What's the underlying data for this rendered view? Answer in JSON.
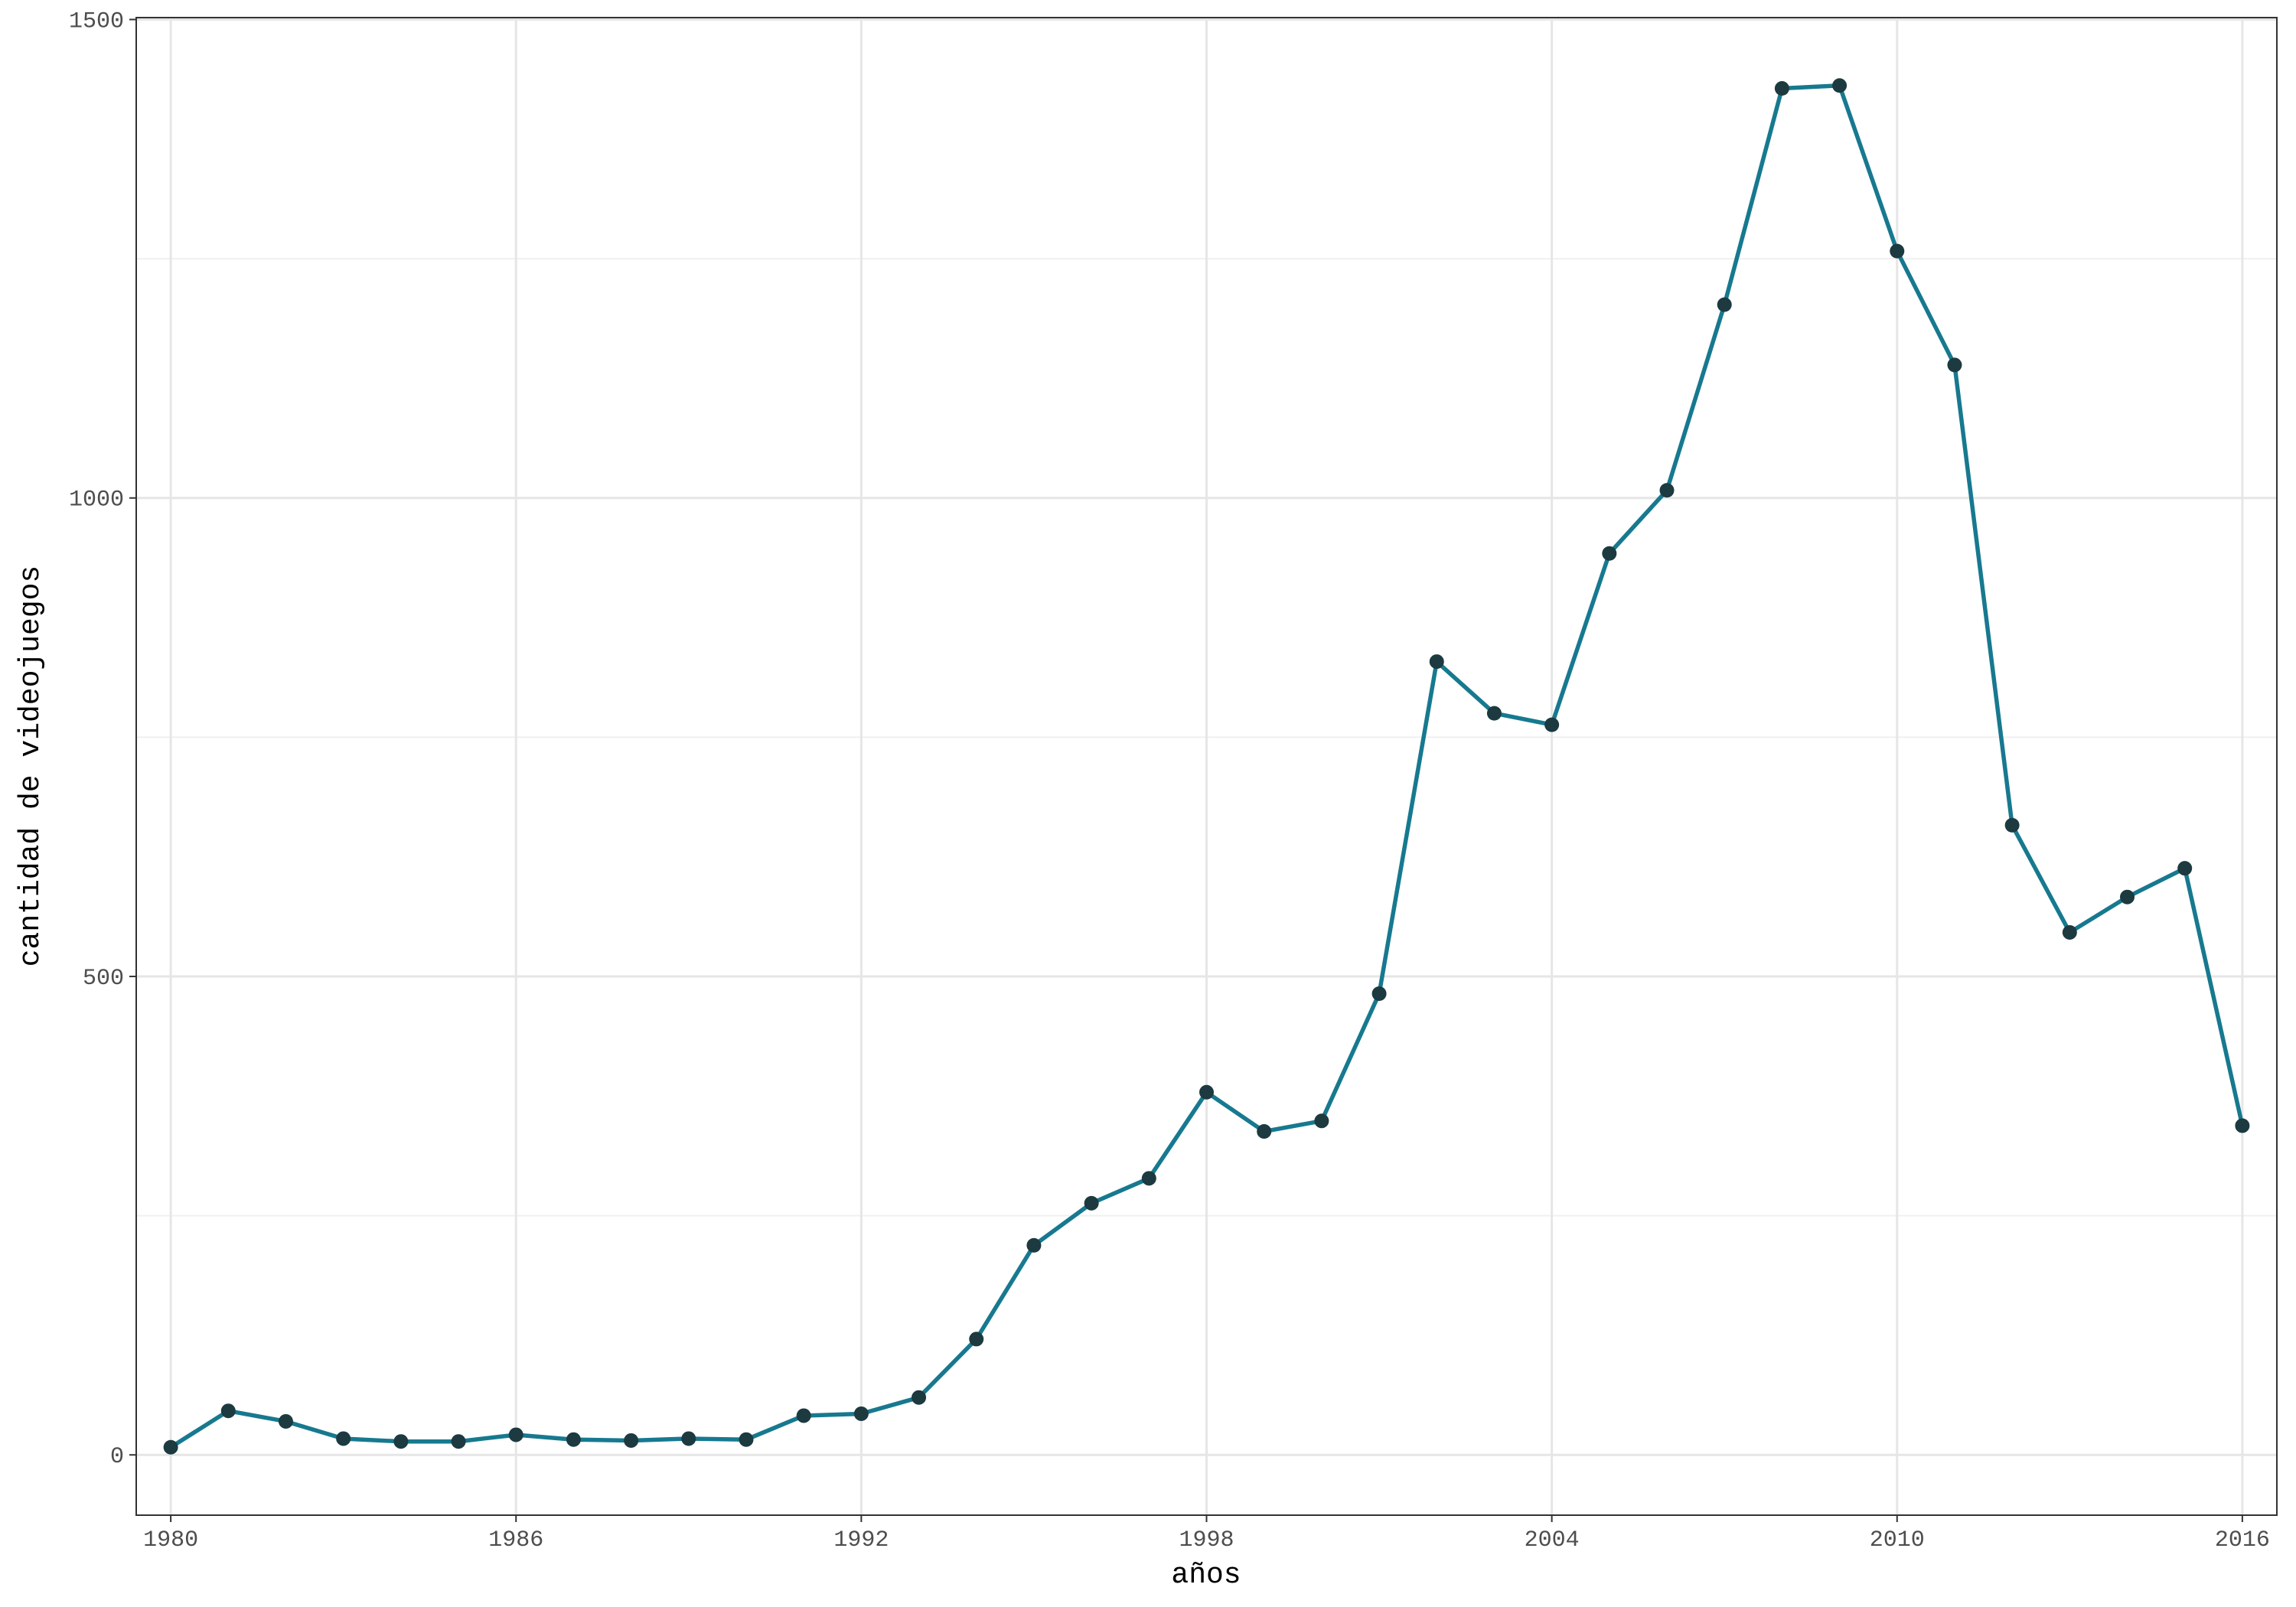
{
  "chart_data": {
    "type": "line",
    "x_label": "años",
    "y_label": "cantidad de videojuegos",
    "x": [
      1980,
      1981,
      1982,
      1983,
      1984,
      1985,
      1986,
      1987,
      1988,
      1989,
      1990,
      1991,
      1992,
      1993,
      1994,
      1995,
      1996,
      1997,
      1998,
      1999,
      2000,
      2001,
      2002,
      2003,
      2004,
      2005,
      2006,
      2007,
      2008,
      2009,
      2010,
      2011,
      2012,
      2013,
      2014,
      2015,
      2016
    ],
    "series": [
      {
        "color": "#17798f",
        "point_color": "#1c3a40",
        "values": [
          8,
          46,
          35,
          17,
          14,
          14,
          21,
          16,
          15,
          17,
          16,
          41,
          43,
          60,
          121,
          219,
          263,
          289,
          379,
          338,
          349,
          482,
          829,
          775,
          763,
          942,
          1008,
          1202,
          1428,
          1431,
          1258,
          1139,
          658,
          546,
          583,
          613,
          344
        ]
      }
    ],
    "xlim": [
      1979.4,
      2016.6
    ],
    "ylim": [
      -63,
      1502
    ],
    "xticks": [
      1980,
      1986,
      1992,
      1998,
      2004,
      2010,
      2016
    ],
    "yticks": [
      0,
      500,
      1000,
      1500
    ],
    "y_minor_grid": [
      250,
      750,
      1250
    ],
    "grid": true
  }
}
